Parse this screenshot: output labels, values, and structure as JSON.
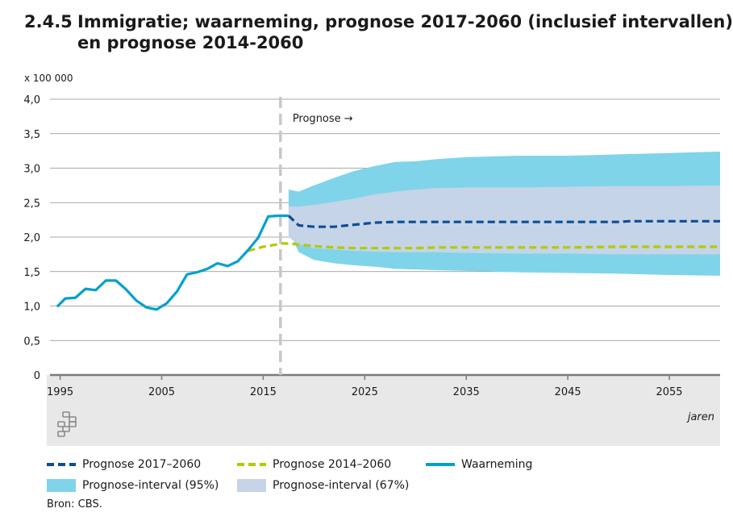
{
  "header": {
    "number": "2.4.5",
    "title_line1": "Immigratie; waarneming, prognose 2017-2060 (inclusief intervallen)",
    "title_line2": "en prognose 2014-2060"
  },
  "colors": {
    "waarneming": "#00a1cd",
    "prognose_2017": "#0b4e96",
    "prognose_2014": "#afcb05",
    "interval95": "#7fd4ea",
    "interval67": "#c5d4e6",
    "footer_band": "#e8e8e8",
    "grid": "#8c8c8c"
  },
  "logo": {
    "icon": "cbs-logo-icon",
    "text": "cbs"
  },
  "chart_data": {
    "type": "line",
    "unit_label": "x 100 000",
    "xlabel": "jaren",
    "xlim": [
      1994,
      2060
    ],
    "ylim": [
      0,
      4.0
    ],
    "yticks": [
      {
        "value": 0,
        "label": "0"
      },
      {
        "value": 0.5,
        "label": "0,5"
      },
      {
        "value": 1.0,
        "label": "1,0"
      },
      {
        "value": 1.5,
        "label": "1,5"
      },
      {
        "value": 2.0,
        "label": "2,0"
      },
      {
        "value": 2.5,
        "label": "2,5"
      },
      {
        "value": 3.0,
        "label": "3,0"
      },
      {
        "value": 3.5,
        "label": "3,5"
      },
      {
        "value": 4.0,
        "label": "4,0"
      }
    ],
    "xticks": [
      {
        "value": 1995,
        "label": "1995"
      },
      {
        "value": 2005,
        "label": "2005"
      },
      {
        "value": 2015,
        "label": "2015"
      },
      {
        "value": 2025,
        "label": "2025"
      },
      {
        "value": 2035,
        "label": "2035"
      },
      {
        "value": 2045,
        "label": "2045"
      },
      {
        "value": 2055,
        "label": "2055"
      }
    ],
    "prognosis_start": 2016.7,
    "annotation": "Prognose →",
    "grid": true,
    "series": [
      {
        "name": "Waarneming",
        "style": "solid",
        "x": [
          1994.7,
          1995.5,
          1996.5,
          1997.5,
          1998.5,
          1999.5,
          2000.5,
          2001.5,
          2002.5,
          2003.5,
          2004.5,
          2005.5,
          2006.5,
          2007.5,
          2008.5,
          2009.5,
          2010.5,
          2011.5,
          2012.5,
          2013.5,
          2014.5,
          2015.5,
          2016.5,
          2017.5
        ],
        "values": [
          0.99,
          1.11,
          1.12,
          1.25,
          1.23,
          1.37,
          1.37,
          1.24,
          1.08,
          0.98,
          0.95,
          1.04,
          1.21,
          1.46,
          1.49,
          1.54,
          1.62,
          1.58,
          1.65,
          1.81,
          1.99,
          2.3,
          2.31,
          2.31
        ]
      },
      {
        "name": "Prognose 2017–2060",
        "style": "dashed",
        "x": [
          2017.5,
          2018.5,
          2020,
          2022,
          2024,
          2026,
          2028,
          2030,
          2035,
          2040,
          2045,
          2050,
          2051,
          2055,
          2060
        ],
        "values": [
          2.31,
          2.17,
          2.15,
          2.15,
          2.18,
          2.21,
          2.22,
          2.22,
          2.22,
          2.22,
          2.22,
          2.22,
          2.23,
          2.23,
          2.23
        ]
      },
      {
        "name": "Prognose 2014–2060",
        "style": "dashed",
        "x": [
          2013.5,
          2015,
          2017,
          2018,
          2020,
          2022,
          2024,
          2026,
          2028,
          2030,
          2032,
          2035,
          2040,
          2045,
          2050,
          2055,
          2060
        ],
        "values": [
          1.8,
          1.86,
          1.91,
          1.9,
          1.87,
          1.85,
          1.84,
          1.84,
          1.84,
          1.84,
          1.85,
          1.85,
          1.85,
          1.85,
          1.86,
          1.86,
          1.86
        ]
      }
    ],
    "bands": [
      {
        "name": "Prognose-interval (95%)",
        "x": [
          2017.5,
          2018.5,
          2020,
          2022,
          2024,
          2026,
          2028,
          2030,
          2032,
          2035,
          2040,
          2045,
          2050,
          2055,
          2060
        ],
        "upper": [
          2.69,
          2.66,
          2.75,
          2.86,
          2.96,
          3.03,
          3.09,
          3.1,
          3.13,
          3.16,
          3.18,
          3.18,
          3.2,
          3.22,
          3.24
        ],
        "lower": [
          2.1,
          1.78,
          1.67,
          1.62,
          1.59,
          1.57,
          1.54,
          1.53,
          1.52,
          1.51,
          1.49,
          1.48,
          1.47,
          1.45,
          1.44
        ]
      },
      {
        "name": "Prognose-interval (67%)",
        "x": [
          2017.5,
          2018.5,
          2020,
          2022,
          2024,
          2026,
          2028,
          2030,
          2032,
          2035,
          2040,
          2045,
          2050,
          2055,
          2060
        ],
        "upper": [
          2.45,
          2.44,
          2.47,
          2.51,
          2.56,
          2.62,
          2.66,
          2.69,
          2.71,
          2.72,
          2.72,
          2.73,
          2.74,
          2.74,
          2.75
        ],
        "lower": [
          2.0,
          1.89,
          1.84,
          1.82,
          1.8,
          1.79,
          1.78,
          1.78,
          1.78,
          1.77,
          1.76,
          1.76,
          1.75,
          1.75,
          1.75
        ]
      }
    ]
  },
  "legend": {
    "items": [
      {
        "key": "prognose_2017",
        "label": "Prognose 2017–2060",
        "kind": "dashed"
      },
      {
        "key": "prognose_2014",
        "label": "Prognose 2014–2060",
        "kind": "dashed"
      },
      {
        "key": "waarneming",
        "label": "Waarneming",
        "kind": "solid"
      },
      {
        "key": "interval95",
        "label": "Prognose-interval (95%)",
        "kind": "box"
      },
      {
        "key": "interval67",
        "label": "Prognose-interval (67%)",
        "kind": "box"
      }
    ]
  },
  "source": "Bron: CBS."
}
